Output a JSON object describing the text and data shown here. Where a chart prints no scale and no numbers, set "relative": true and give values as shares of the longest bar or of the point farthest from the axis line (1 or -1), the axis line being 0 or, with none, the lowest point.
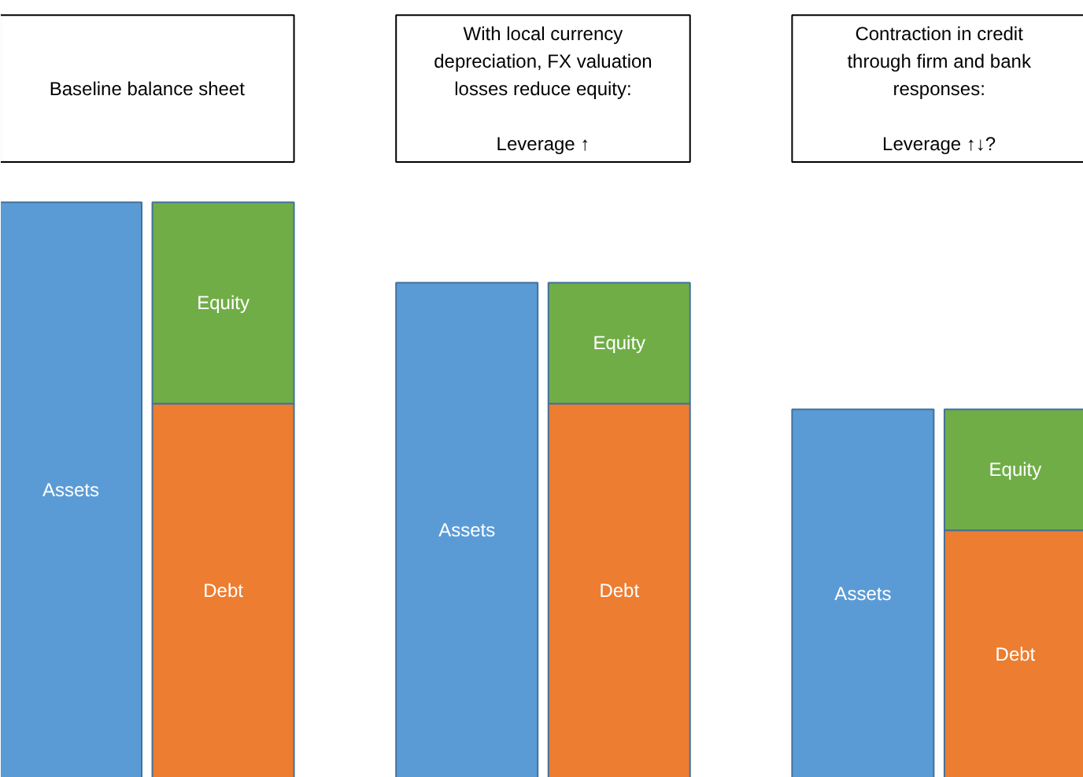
{
  "chart_data": {
    "type": "bar",
    "stacked": true,
    "relative": true,
    "grid": false,
    "categories": [
      null,
      null,
      null,
      null,
      null,
      null
    ],
    "series": [
      {
        "name": "Assets",
        "color": "#5b9bd5",
        "values": [
          1,
          null,
          0.86,
          null,
          0.64,
          null
        ]
      },
      {
        "name": "Debt",
        "color": "#ed7d31",
        "values": [
          null,
          0.65,
          null,
          0.65,
          null,
          0.43
        ]
      },
      {
        "name": "Equity",
        "color": "#70ad47",
        "values": [
          null,
          0.35,
          null,
          0.21,
          null,
          0.21
        ]
      }
    ],
    "annotations": [
      "Baseline balance sheet",
      "With local currency depreciation, FX valuation losses reduce equity:\n\nLeverage ↑",
      "Contraction in credit through firm and bank responses:\n\nLeverage ↑↓?"
    ]
  }
}
